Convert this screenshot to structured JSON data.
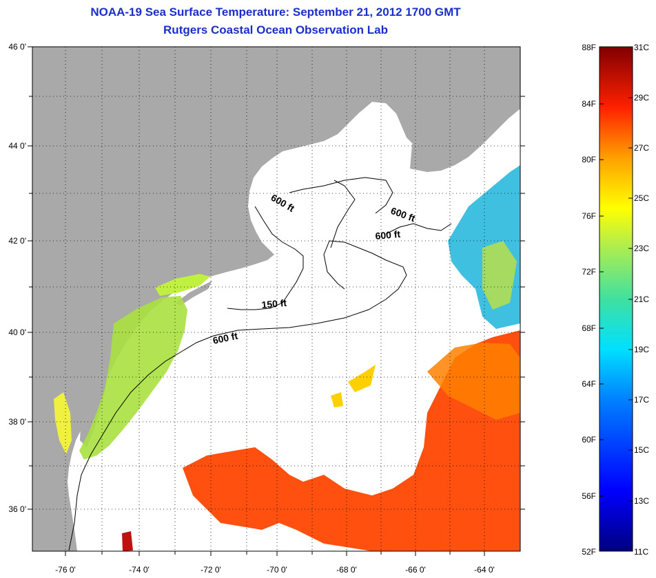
{
  "title": "NOAA-19 Sea Surface Temperature:  September 21, 2012 1700 GMT",
  "subtitle": "Rutgers Coastal Ocean Observation Lab",
  "map": {
    "lon_ticks": [
      "-76 0'",
      "-74 0'",
      "-72 0'",
      "-70 0'",
      "-68 0'",
      "-66 0'",
      "-64 0'"
    ],
    "lat_ticks": [
      "46 0'",
      "44 0'",
      "42 0'",
      "40 0'",
      "38 0'",
      "36 0'"
    ],
    "contour_labels": [
      "600 ft",
      "600 ft",
      "600 ft",
      "150 ft",
      "600 ft"
    ],
    "colors": {
      "land": "#a9a9a9",
      "ocean": "#ffffff",
      "grid": "#000000"
    }
  },
  "colorbar": {
    "fahrenheit": [
      "88F",
      "84F",
      "80F",
      "76F",
      "72F",
      "68F",
      "64F",
      "60F",
      "56F",
      "52F"
    ],
    "celsius": [
      "31C",
      "29C",
      "27C",
      "25C",
      "23C",
      "21C",
      "19C",
      "17C",
      "15C",
      "13C",
      "11C"
    ]
  }
}
